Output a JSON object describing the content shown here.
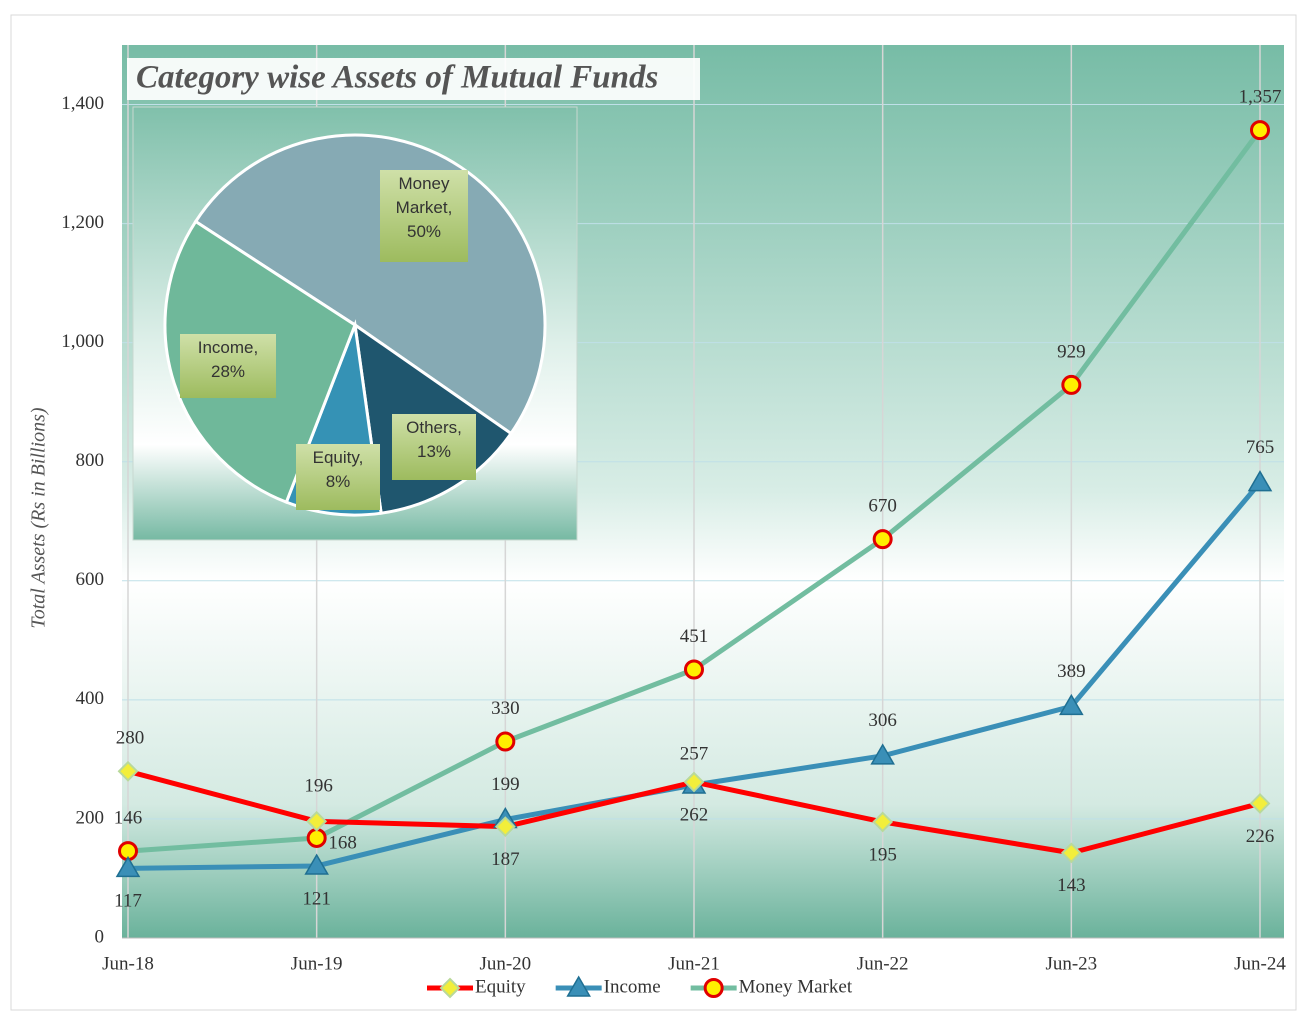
{
  "chart_data": [
    {
      "type": "line",
      "title": "Category wise Assets of Mutual Funds",
      "y_label": "Total Assets  (Rs in Billions)",
      "categories": [
        "Jun-18",
        "Jun-19",
        "Jun-20",
        "Jun-21",
        "Jun-22",
        "Jun-23",
        "Jun-24"
      ],
      "series": [
        {
          "name": "Equity",
          "color": "#ff0000",
          "values": [
            280,
            196,
            187,
            262,
            195,
            143,
            226
          ]
        },
        {
          "name": "Income",
          "color": "#3a8fb7",
          "values": [
            117,
            121,
            199,
            257,
            306,
            389,
            765
          ]
        },
        {
          "name": "Money Market",
          "color": "#72bda0",
          "values": [
            146,
            168,
            330,
            451,
            670,
            929,
            1357
          ],
          "value_labels": [
            "146",
            "168",
            "330",
            "451",
            "670",
            "929",
            "1,357"
          ]
        }
      ],
      "ylim": [
        0,
        1500
      ],
      "yticks": [
        0,
        200,
        400,
        600,
        800,
        {
          "value": 1000,
          "label": "1,000"
        },
        {
          "value": 1200,
          "label": "1,200"
        },
        {
          "value": 1400,
          "label": "1,400"
        }
      ],
      "grid": true,
      "legend": "bottom"
    },
    {
      "type": "pie",
      "labels": [
        "Money Market, 50%",
        "Others, 13%",
        "Equity, 8%",
        "Income, 28%"
      ],
      "values": [
        50,
        13,
        8,
        28
      ],
      "colors": [
        "#86aab4",
        "#1f566e",
        "#3592b5",
        "#6fb89a"
      ]
    }
  ]
}
